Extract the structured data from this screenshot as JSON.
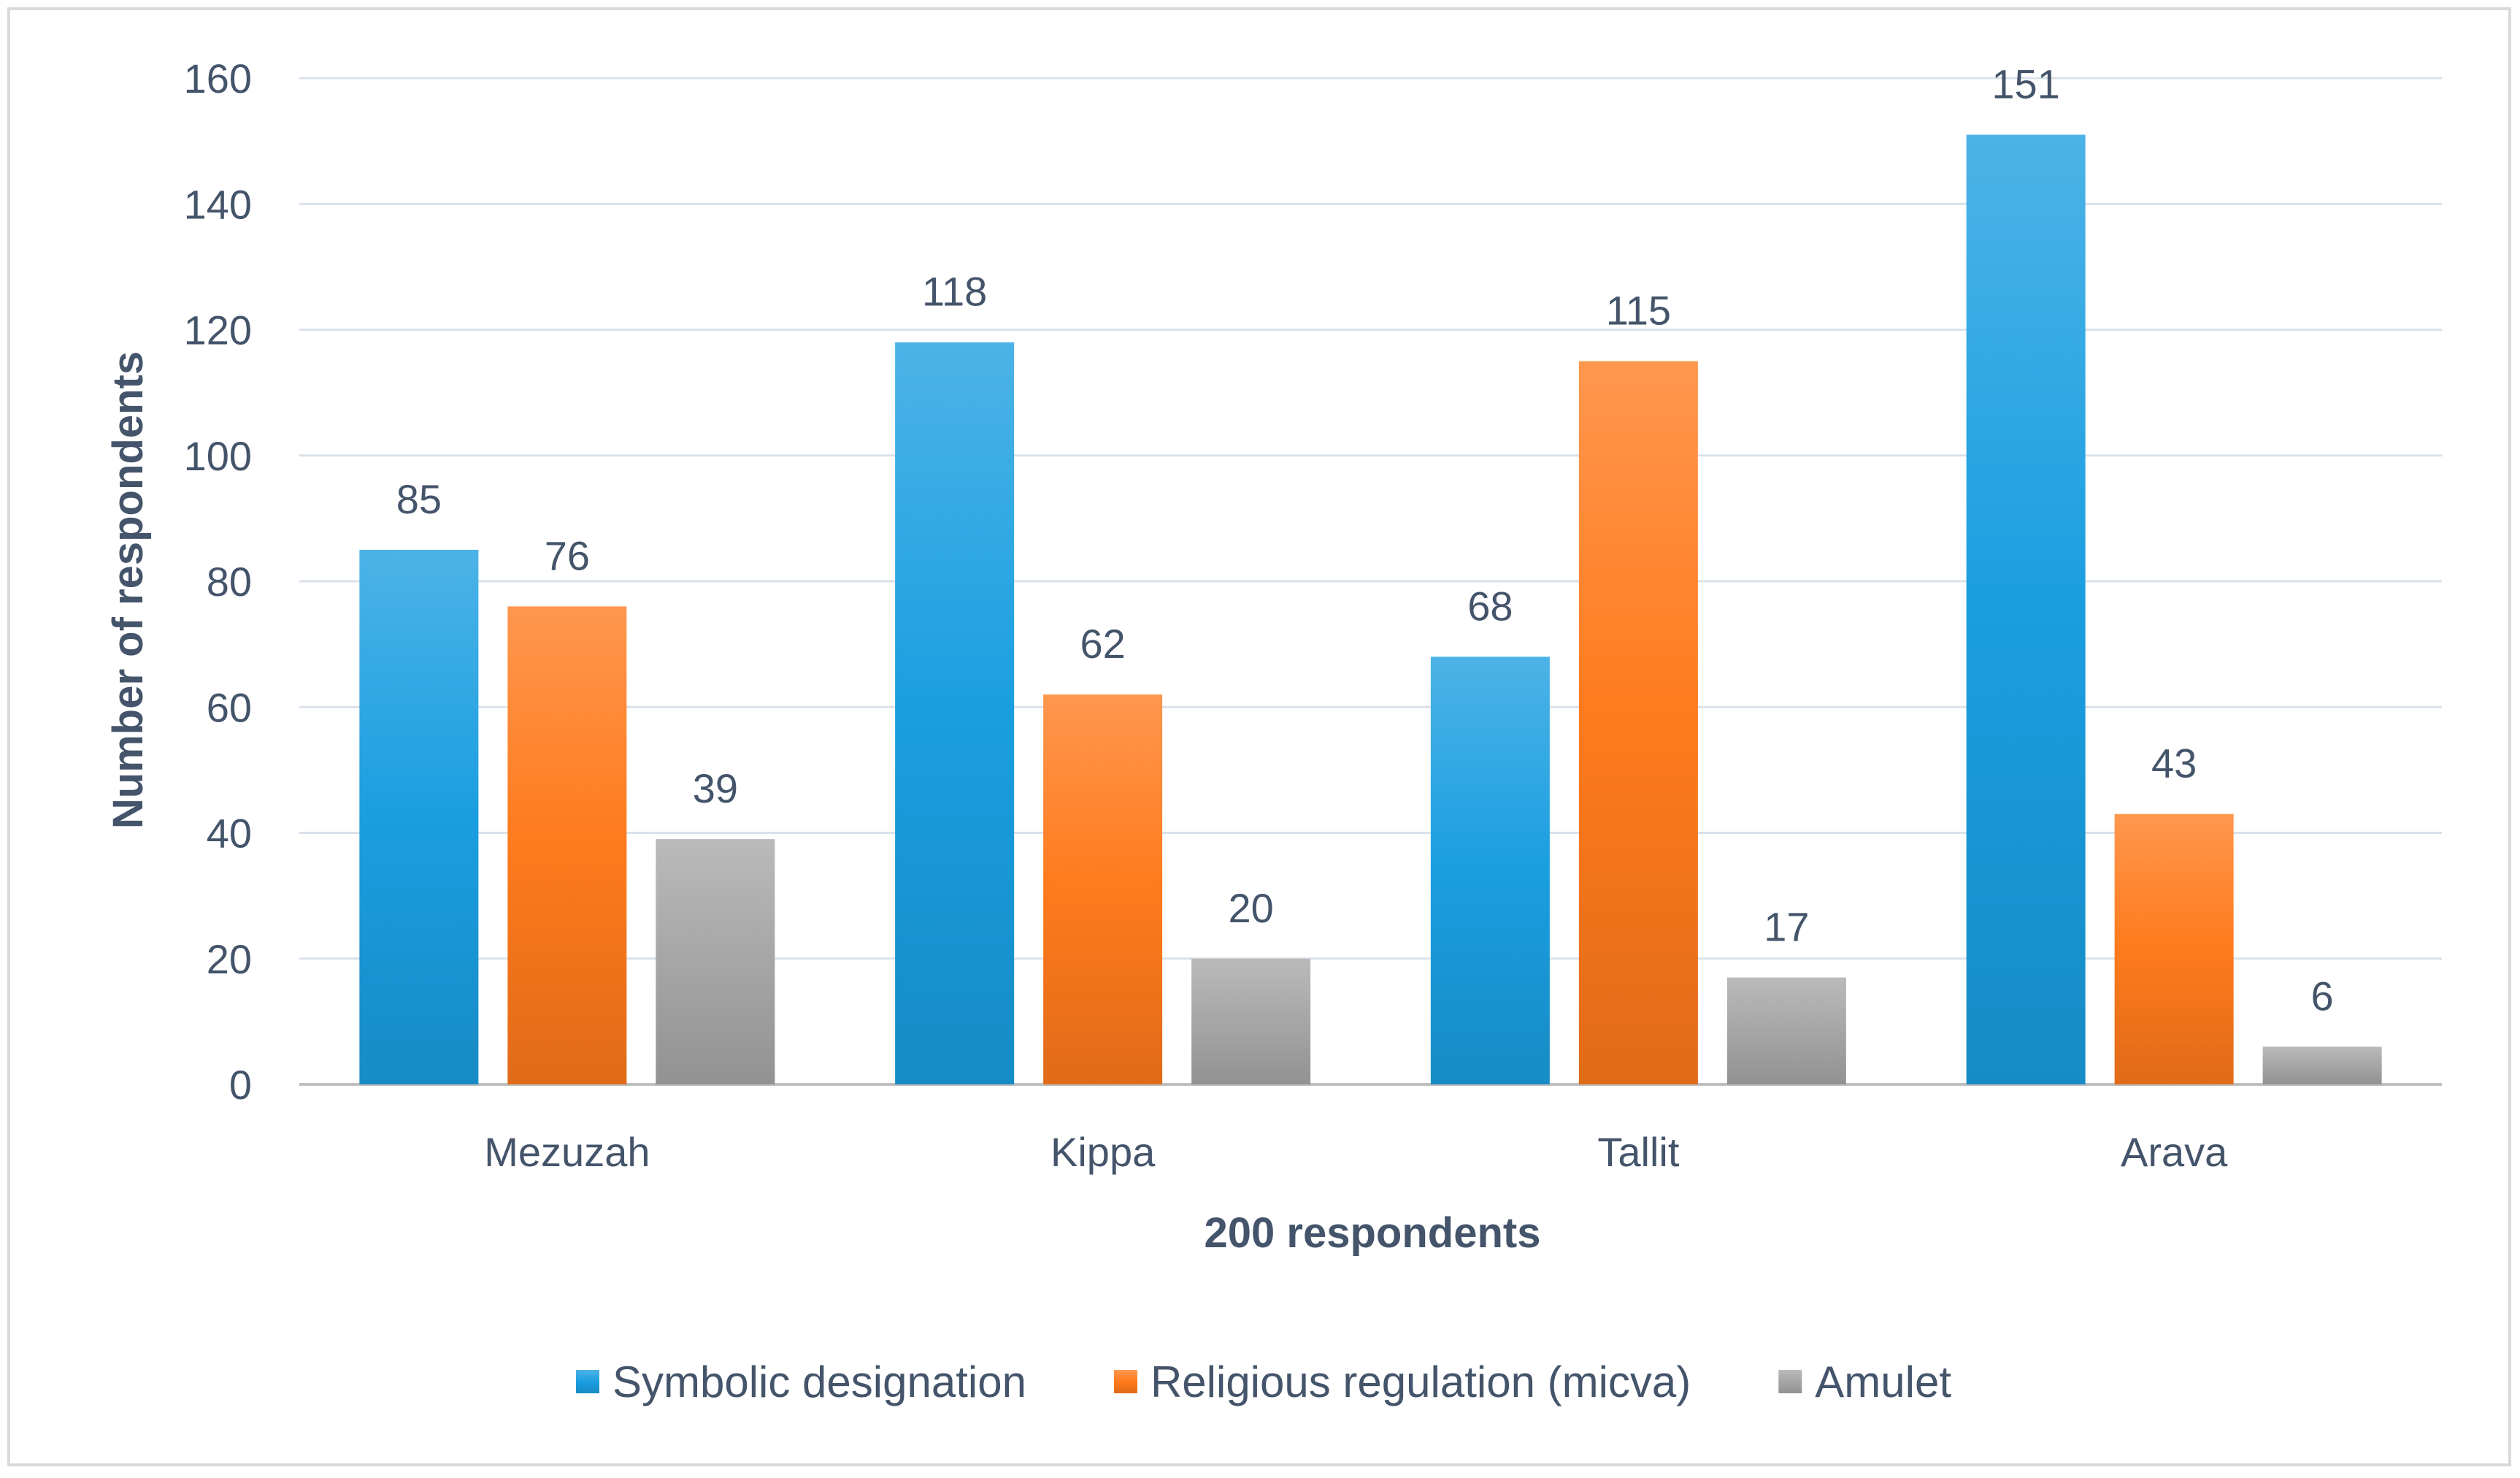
{
  "chart_data": {
    "type": "bar",
    "categories": [
      "Mezuzah",
      "Kippa",
      "Tallit",
      "Arava"
    ],
    "series": [
      {
        "name": "Symbolic designation",
        "values": [
          85,
          118,
          68,
          151
        ],
        "color": "#1a9ee0"
      },
      {
        "name": "Religious regulation (micva)",
        "values": [
          76,
          62,
          115,
          43
        ],
        "color": "#ff7a1c"
      },
      {
        "name": "Amulet",
        "values": [
          39,
          20,
          17,
          6
        ],
        "color": "#a6a6a6"
      }
    ],
    "xlabel": "200 respondents",
    "ylabel": "Number of respondents",
    "ylim": [
      0,
      160
    ],
    "yticks": [
      0,
      20,
      40,
      60,
      80,
      100,
      120,
      140,
      160
    ],
    "grid": true,
    "legend_position": "bottom",
    "data_labels": true
  }
}
